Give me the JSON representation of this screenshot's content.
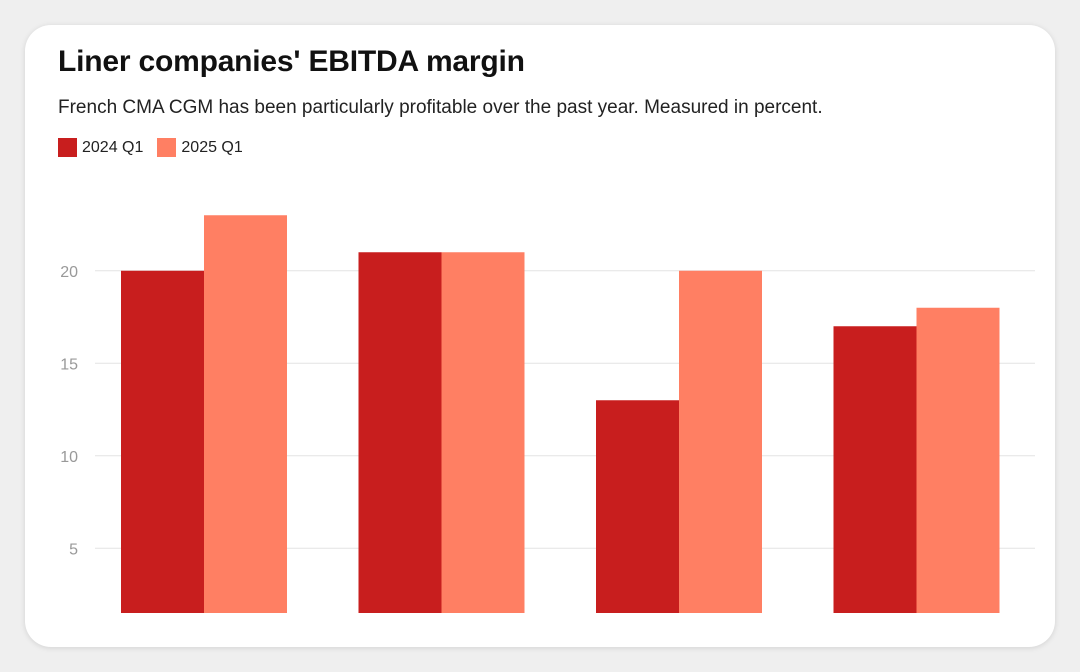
{
  "chart_data": {
    "type": "bar",
    "title": "Liner companies' EBITDA margin",
    "subtitle": "French CMA CGM has been particularly profitable over the past year. Measured in percent.",
    "categories": [
      "",
      "",
      "",
      ""
    ],
    "series": [
      {
        "name": "2024 Q1",
        "color": "#c81e1e",
        "values": [
          20,
          21,
          13,
          17
        ]
      },
      {
        "name": "2025 Q1",
        "color": "#ff7f63",
        "values": [
          23,
          21,
          20,
          18
        ]
      }
    ],
    "yticks": [
      5,
      10,
      15,
      20
    ],
    "ylim": [
      1.5,
      25
    ],
    "grid": true,
    "legend_position": "top-left"
  }
}
